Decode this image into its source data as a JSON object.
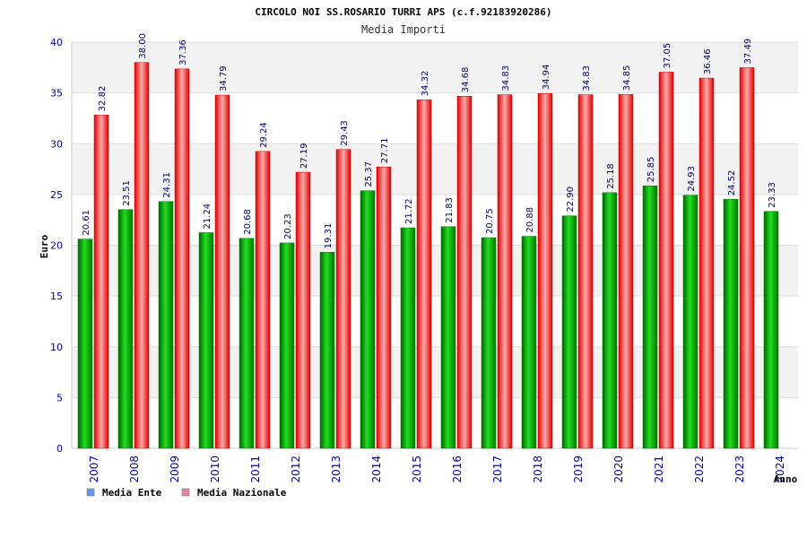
{
  "chart_data": {
    "type": "bar",
    "title": "CIRCOLO NOI SS.ROSARIO TURRI APS (c.f.92183920286)",
    "subtitle": "Media Importi",
    "ylabel": "Euro",
    "xlabel": "Anno",
    "ylim": [
      0,
      40
    ],
    "yticks": [
      0,
      5,
      10,
      15,
      20,
      25,
      30,
      35,
      40
    ],
    "grid": true,
    "legend_position": "bottom-left",
    "categories": [
      "2007",
      "2008",
      "2009",
      "2010",
      "2011",
      "2012",
      "2013",
      "2014",
      "2015",
      "2016",
      "2017",
      "2018",
      "2019",
      "2020",
      "2021",
      "2022",
      "2023",
      "2024"
    ],
    "series": [
      {
        "name": "Media Ente",
        "color": "#00aa00",
        "legend_color": "#6699ee",
        "values": [
          20.61,
          23.51,
          24.31,
          21.24,
          20.68,
          20.23,
          19.31,
          25.37,
          21.72,
          21.83,
          20.75,
          20.88,
          22.9,
          25.18,
          25.85,
          24.93,
          24.52,
          23.33
        ],
        "labels": [
          "20.61",
          "23.51",
          "24.31",
          "21.24",
          "20.68",
          "20.23",
          "19.31",
          "25.37",
          "21.72",
          "21.83",
          "20.75",
          "20.88",
          "22.90",
          "25.18",
          "25.85",
          "24.93",
          "24.52",
          "23.33"
        ]
      },
      {
        "name": "Media Nazionale",
        "color": "#ee1111",
        "legend_color": "#dd88aa",
        "values": [
          32.82,
          38.0,
          37.36,
          34.79,
          29.24,
          27.19,
          29.43,
          27.71,
          34.32,
          34.68,
          34.83,
          34.94,
          34.83,
          34.85,
          37.05,
          36.46,
          37.49,
          null
        ],
        "labels": [
          "32.82",
          "38.00",
          "37.36",
          "34.79",
          "29.24",
          "27.19",
          "29.43",
          "27.71",
          "34.32",
          "34.68",
          "34.83",
          "34.94",
          "34.83",
          "34.85",
          "37.05",
          "36.46",
          "37.49",
          ""
        ]
      }
    ]
  }
}
